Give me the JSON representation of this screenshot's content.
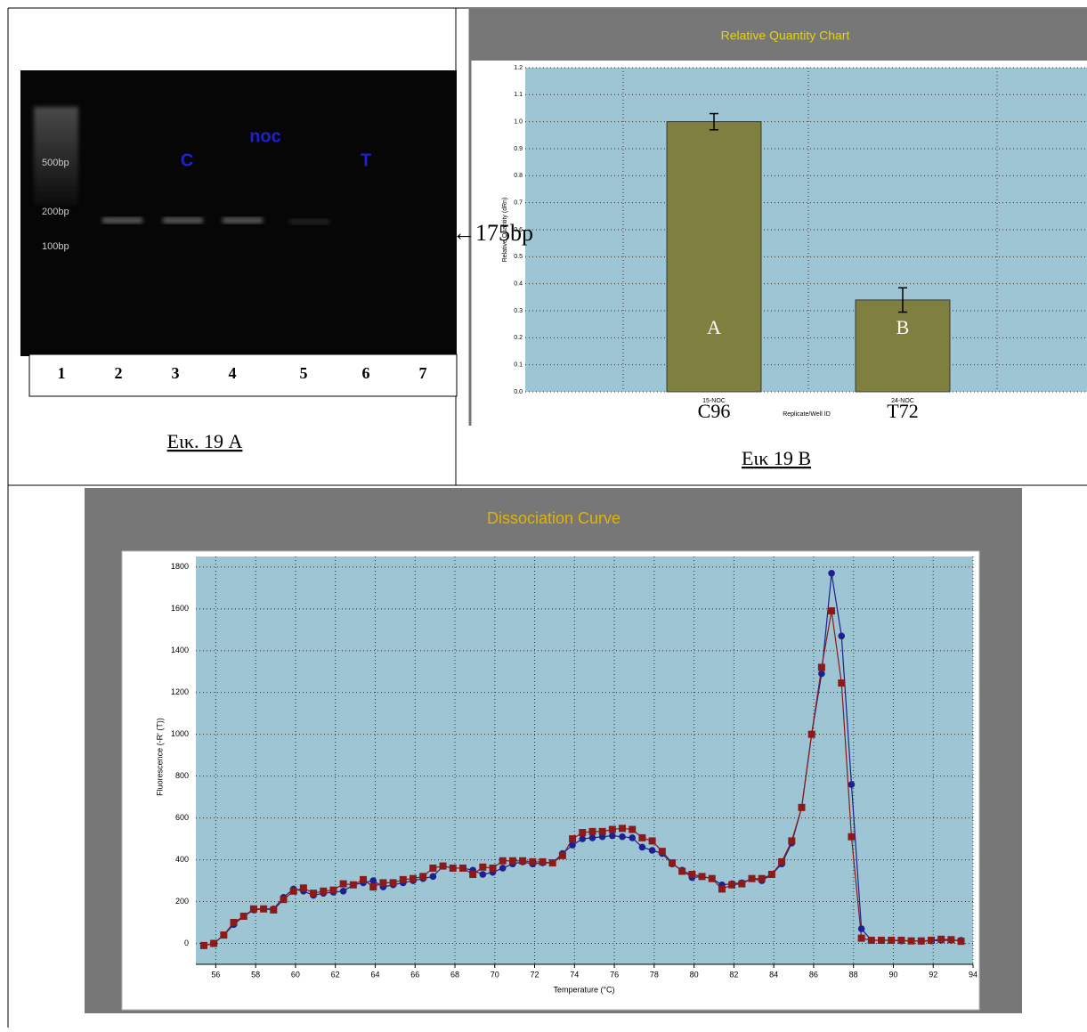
{
  "gel": {
    "markers": [
      "500bp",
      "200bp",
      "100bp"
    ],
    "lane_marks": [
      "C",
      "noc",
      "T"
    ],
    "lanes": [
      "1",
      "2",
      "3",
      "4",
      "5",
      "6",
      "7"
    ],
    "band_size": "←175bp",
    "caption": "Εικ. 19 A"
  },
  "chart_data": [
    {
      "type": "bar",
      "title": "Relative Quantity Chart",
      "y_label": "Relative Quantity (dRn)",
      "x_label": "Replicate/Well ID",
      "categories": [
        "15-NOC",
        "24-NOC"
      ],
      "sample_labels": [
        "C96",
        "T72"
      ],
      "bar_labels": [
        "A",
        "B"
      ],
      "values": [
        1.0,
        0.34
      ],
      "errors": [
        0.03,
        0.045
      ],
      "color": "#7f7f40",
      "ylim": [
        0,
        1.2
      ],
      "yticks": [
        {
          "value": 0,
          "label": "0.0"
        },
        0.1,
        0.2,
        0.3,
        0.4,
        0.5,
        0.6,
        0.7,
        0.8,
        0.9,
        {
          "value": 1,
          "label": "1.0"
        },
        1.1,
        1.2
      ],
      "grid": true,
      "caption": "Εικ 19 B"
    },
    {
      "type": "line",
      "title": "Dissociation Curve",
      "x_label": "Temperature (°C)",
      "y_label": "Fluorescence (-R' (T))",
      "x": [
        55.4,
        55.9,
        56.4,
        56.9,
        57.4,
        57.9,
        58.4,
        58.9,
        59.4,
        59.9,
        60.4,
        60.9,
        61.4,
        61.9,
        62.4,
        62.9,
        63.4,
        63.9,
        64.4,
        64.9,
        65.4,
        65.9,
        66.4,
        66.9,
        67.4,
        67.9,
        68.4,
        68.9,
        69.4,
        69.9,
        70.4,
        70.9,
        71.4,
        71.9,
        72.4,
        72.9,
        73.4,
        73.9,
        74.4,
        74.9,
        75.4,
        75.9,
        76.4,
        76.9,
        77.4,
        77.9,
        78.4,
        78.9,
        79.4,
        79.9,
        80.4,
        80.9,
        81.4,
        81.9,
        82.4,
        82.9,
        83.4,
        83.9,
        84.4,
        84.9,
        85.4,
        85.9,
        86.4,
        86.9,
        87.4,
        87.9,
        88.4,
        88.9,
        89.4,
        89.9,
        90.4,
        90.9,
        91.4,
        91.9,
        92.4,
        92.9,
        93.4
      ],
      "series": [
        {
          "color": "#1f1f8f",
          "marker": "circle",
          "values": [
            -10,
            0,
            40,
            90,
            130,
            160,
            165,
            165,
            220,
            260,
            250,
            230,
            240,
            245,
            250,
            280,
            290,
            300,
            270,
            280,
            290,
            300,
            310,
            320,
            370,
            360,
            360,
            350,
            330,
            340,
            360,
            380,
            390,
            380,
            385,
            385,
            430,
            470,
            500,
            505,
            510,
            515,
            510,
            505,
            460,
            445,
            430,
            380,
            350,
            315,
            320,
            310,
            280,
            285,
            290,
            310,
            300,
            330,
            380,
            480,
            650,
            1000,
            1290,
            1770,
            1470,
            760,
            70,
            15,
            15,
            15,
            12,
            12,
            10,
            12,
            15,
            15,
            15
          ]
        },
        {
          "color": "#8b1a1a",
          "marker": "square",
          "values": [
            -10,
            0,
            40,
            100,
            130,
            165,
            165,
            160,
            210,
            250,
            265,
            240,
            250,
            255,
            285,
            280,
            305,
            270,
            290,
            290,
            305,
            310,
            320,
            360,
            370,
            360,
            360,
            330,
            365,
            360,
            395,
            395,
            395,
            390,
            390,
            385,
            420,
            500,
            530,
            535,
            535,
            545,
            550,
            545,
            505,
            490,
            440,
            385,
            345,
            330,
            320,
            310,
            260,
            280,
            285,
            310,
            310,
            330,
            390,
            490,
            650,
            1000,
            1320,
            1590,
            1245,
            510,
            25,
            15,
            15,
            15,
            15,
            12,
            12,
            15,
            20,
            18,
            10
          ]
        }
      ],
      "xlim": [
        55,
        94
      ],
      "xticks": [
        56,
        58,
        60,
        62,
        64,
        66,
        68,
        70,
        72,
        74,
        76,
        78,
        80,
        82,
        84,
        86,
        88,
        90,
        92,
        94
      ],
      "ylim": [
        -100,
        1850
      ],
      "yticks": [
        0,
        200,
        400,
        600,
        800,
        1000,
        1200,
        1400,
        1600,
        1800
      ],
      "grid": true
    }
  ]
}
